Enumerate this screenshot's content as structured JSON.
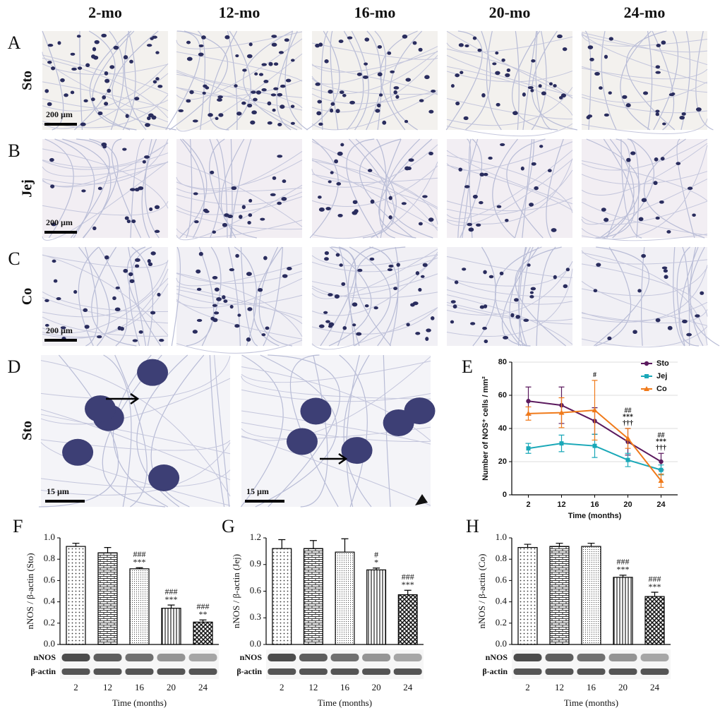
{
  "figure": {
    "panels": [
      "A",
      "B",
      "C",
      "D"
    ],
    "columns": [
      "2-mo",
      "12-mo",
      "16-mo",
      "20-mo",
      "24-mo"
    ],
    "rows": [
      "Sto",
      "Jej",
      "Co",
      "Sto"
    ],
    "scale_bars": [
      "200 µm",
      "200 µm",
      "200 µm",
      "15 µm",
      "15 µm"
    ]
  },
  "chart_data": [
    {
      "type": "line",
      "panel": "E",
      "x_label": "Time (months)",
      "y_label": "Number of NOS⁺ cells / mm²",
      "categories": [
        "2",
        "12",
        "16",
        "20",
        "24"
      ],
      "ylim": [
        0,
        80
      ],
      "yticks": [
        0,
        20,
        40,
        60,
        80
      ],
      "grid": true,
      "legend": "top-right",
      "series": [
        {
          "name": "Sto",
          "color": "#5b1a5e",
          "values": [
            56.5,
            54,
            44.5,
            32,
            20
          ],
          "errors": [
            8.5,
            11,
            8,
            8,
            5
          ]
        },
        {
          "name": "Jej",
          "color": "#1aa8b8",
          "values": [
            28,
            31,
            29.5,
            21,
            15
          ],
          "errors": [
            3,
            5,
            7,
            4,
            3
          ]
        },
        {
          "name": "Co",
          "color": "#f07a1a",
          "values": [
            49,
            49.5,
            51,
            34,
            8.5
          ],
          "errors": [
            4,
            9,
            18,
            6,
            4
          ]
        }
      ],
      "annotations": [
        null,
        null,
        [
          "#"
        ],
        [
          "##",
          "***",
          "†††"
        ],
        [
          "##",
          "***",
          "†††"
        ]
      ]
    },
    {
      "type": "bar",
      "panel": "F",
      "x_label": "Time (months)",
      "y_label": "nNOS / β-actin (Sto)",
      "categories": [
        "2",
        "12",
        "16",
        "20",
        "24"
      ],
      "values": [
        0.92,
        0.86,
        0.71,
        0.34,
        0.21
      ],
      "errors": [
        0.03,
        0.05,
        0.01,
        0.03,
        0.02
      ],
      "ylim": [
        0,
        1.0
      ],
      "yticks": [
        {
          "value": 0,
          "label": "0.0"
        },
        0.2,
        0.4,
        0.6,
        0.8,
        {
          "value": 1.0,
          "label": "1.0"
        }
      ],
      "annotations": [
        null,
        null,
        [
          "###",
          "***"
        ],
        [
          "###",
          "***"
        ],
        [
          "###",
          "**"
        ]
      ],
      "blot_labels": [
        "nNOS",
        "β-actin"
      ]
    },
    {
      "type": "bar",
      "panel": "G",
      "x_label": "Time (months)",
      "y_label": "nNOS / β-actin (Jej)",
      "categories": [
        "2",
        "12",
        "16",
        "20",
        "24"
      ],
      "values": [
        1.08,
        1.08,
        1.04,
        0.84,
        0.56
      ],
      "errors": [
        0.1,
        0.09,
        0.15,
        0.02,
        0.05
      ],
      "ylim": [
        0,
        1.2
      ],
      "yticks": [
        {
          "value": 0,
          "label": "0.0"
        },
        0.3,
        0.6,
        0.9,
        1.2
      ],
      "annotations": [
        null,
        null,
        null,
        [
          "#",
          "*"
        ],
        [
          "###",
          "***"
        ]
      ],
      "blot_labels": [
        "nNOS",
        "β-actin"
      ]
    },
    {
      "type": "bar",
      "panel": "H",
      "x_label": "Time (months)",
      "y_label": "nNOS / β-actin (Co)",
      "categories": [
        "2",
        "12",
        "16",
        "20",
        "24"
      ],
      "values": [
        0.91,
        0.92,
        0.92,
        0.63,
        0.45
      ],
      "errors": [
        0.03,
        0.03,
        0.03,
        0.02,
        0.04
      ],
      "ylim": [
        0,
        1.0
      ],
      "yticks": [
        {
          "value": 0,
          "label": "0.0"
        },
        0.2,
        0.4,
        0.6,
        0.8,
        {
          "value": 1.0,
          "label": "1.0"
        }
      ],
      "annotations": [
        null,
        null,
        null,
        [
          "###",
          "***"
        ],
        [
          "###",
          "***"
        ]
      ],
      "blot_labels": [
        "nNOS",
        "β-actin"
      ]
    }
  ]
}
